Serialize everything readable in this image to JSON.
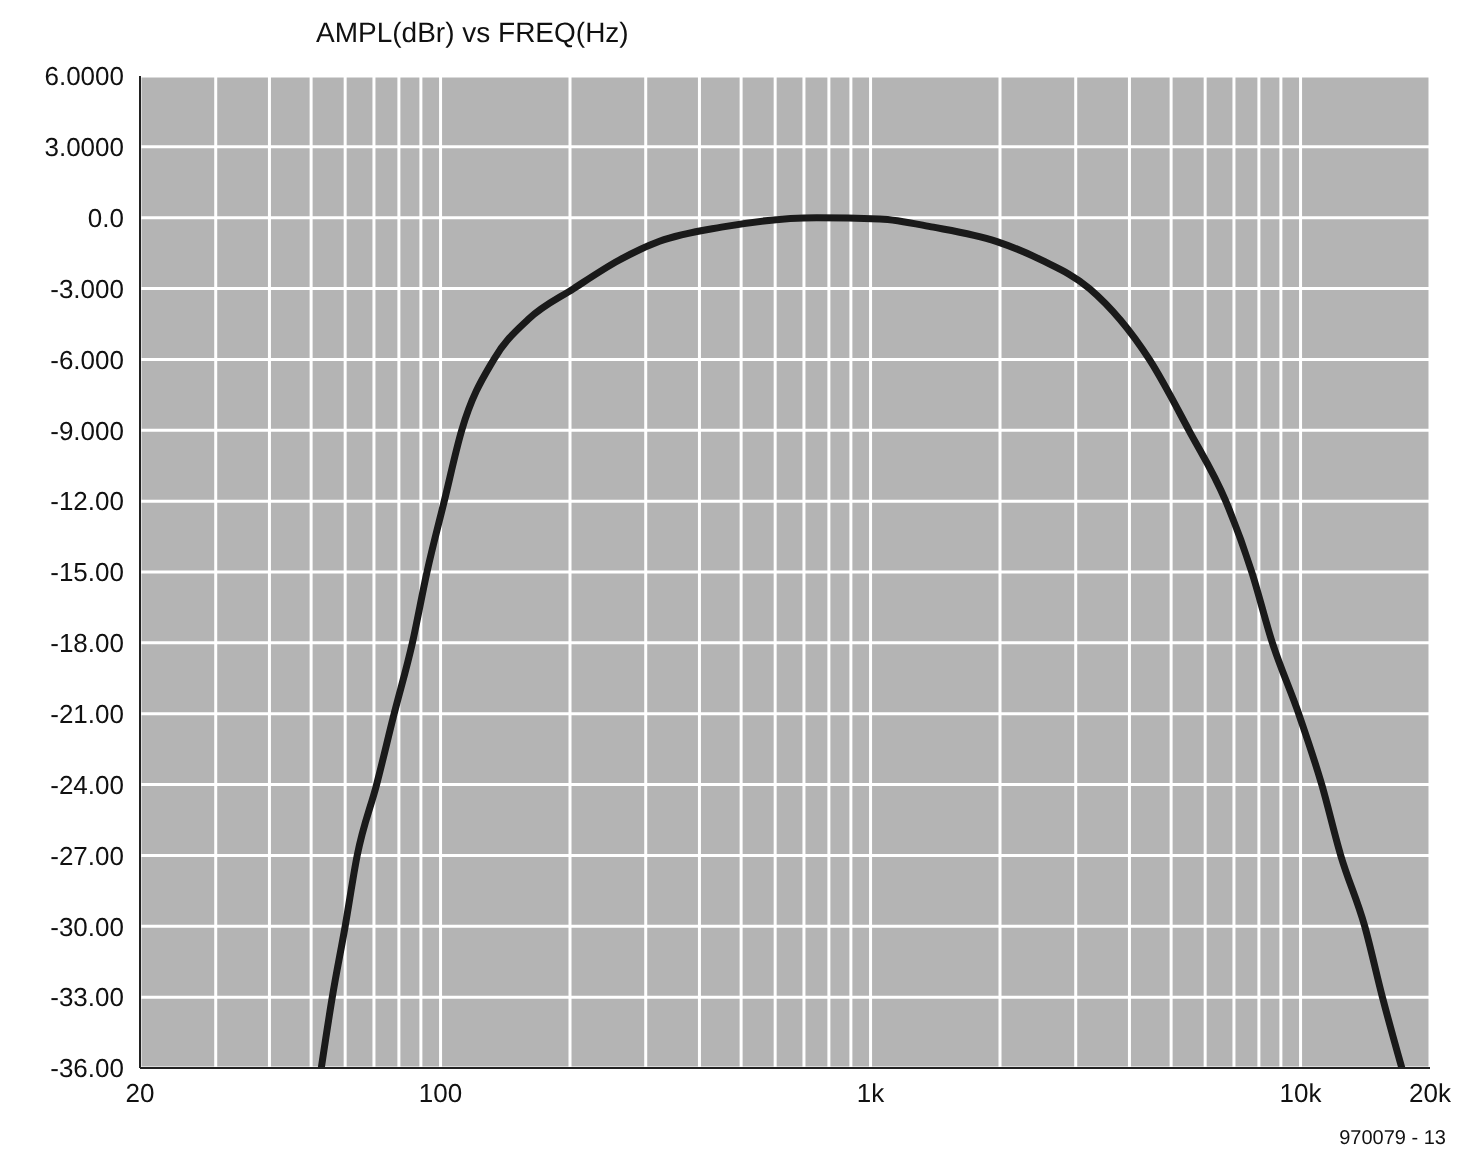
{
  "chart_data": {
    "type": "line",
    "title": "AMPL(dBr)  vs  FREQ(Hz)",
    "annotations": [
      "970079 - 13"
    ],
    "x": [
      52.8,
      56,
      60,
      64,
      71,
      78,
      86,
      93,
      102,
      112,
      133,
      160,
      204,
      260,
      323,
      450,
      750,
      1050,
      1400,
      1960,
      2500,
      3230,
      4450,
      5500,
      6700,
      7700,
      8600,
      9900,
      11200,
      12400,
      14100,
      15500,
      17200
    ],
    "values": [
      -36,
      -33,
      -30,
      -27,
      -24,
      -21,
      -18,
      -15,
      -12,
      -9,
      -6,
      -4.3,
      -3,
      -1.8,
      -1,
      -0.4,
      0,
      -0.05,
      -0.4,
      -1,
      -1.8,
      -3,
      -6,
      -9,
      -12,
      -15,
      -18,
      -21,
      -24,
      -27,
      -30,
      -33,
      -36
    ],
    "color": "#1a1a1a",
    "log": "x",
    "grid": true,
    "marker": "none",
    "line_style": "solid",
    "xlim": [
      20,
      20000
    ],
    "xticks": [
      20,
      {
        "value": 30,
        "label": null
      },
      {
        "value": 40,
        "label": null
      },
      {
        "value": 50,
        "label": null
      },
      {
        "value": 60,
        "label": null
      },
      {
        "value": 70,
        "label": null
      },
      {
        "value": 80,
        "label": null
      },
      {
        "value": 90,
        "label": null
      },
      100,
      {
        "value": 200,
        "label": null
      },
      {
        "value": 300,
        "label": null
      },
      {
        "value": 400,
        "label": null
      },
      {
        "value": 500,
        "label": null
      },
      {
        "value": 600,
        "label": null
      },
      {
        "value": 700,
        "label": null
      },
      {
        "value": 800,
        "label": null
      },
      {
        "value": 900,
        "label": null
      },
      {
        "value": 1000,
        "label": "1k"
      },
      {
        "value": 2000,
        "label": null
      },
      {
        "value": 3000,
        "label": null
      },
      {
        "value": 4000,
        "label": null
      },
      {
        "value": 5000,
        "label": null
      },
      {
        "value": 6000,
        "label": null
      },
      {
        "value": 7000,
        "label": null
      },
      {
        "value": 8000,
        "label": null
      },
      {
        "value": 9000,
        "label": null
      },
      {
        "value": 10000,
        "label": "10k"
      },
      {
        "value": 20000,
        "label": "20k"
      }
    ],
    "ylim": [
      -36,
      6
    ],
    "yticks": [
      {
        "value": 6,
        "label": "6.0000"
      },
      {
        "value": 3,
        "label": "3.0000"
      },
      {
        "value": 0,
        "label": "0.0"
      },
      {
        "value": -3,
        "label": "-3.000"
      },
      {
        "value": -6,
        "label": "-6.000"
      },
      {
        "value": -9,
        "label": "-9.000"
      },
      {
        "value": -12,
        "label": "-12.00"
      },
      {
        "value": -15,
        "label": "-15.00"
      },
      {
        "value": -18,
        "label": "-18.00"
      },
      {
        "value": -21,
        "label": "-21.00"
      },
      {
        "value": -24,
        "label": "-24.00"
      },
      {
        "value": -27,
        "label": "-27.00"
      },
      {
        "value": -30,
        "label": "-30.00"
      },
      {
        "value": -33,
        "label": "-33.00"
      },
      {
        "value": -36,
        "label": "-36.00"
      }
    ]
  }
}
